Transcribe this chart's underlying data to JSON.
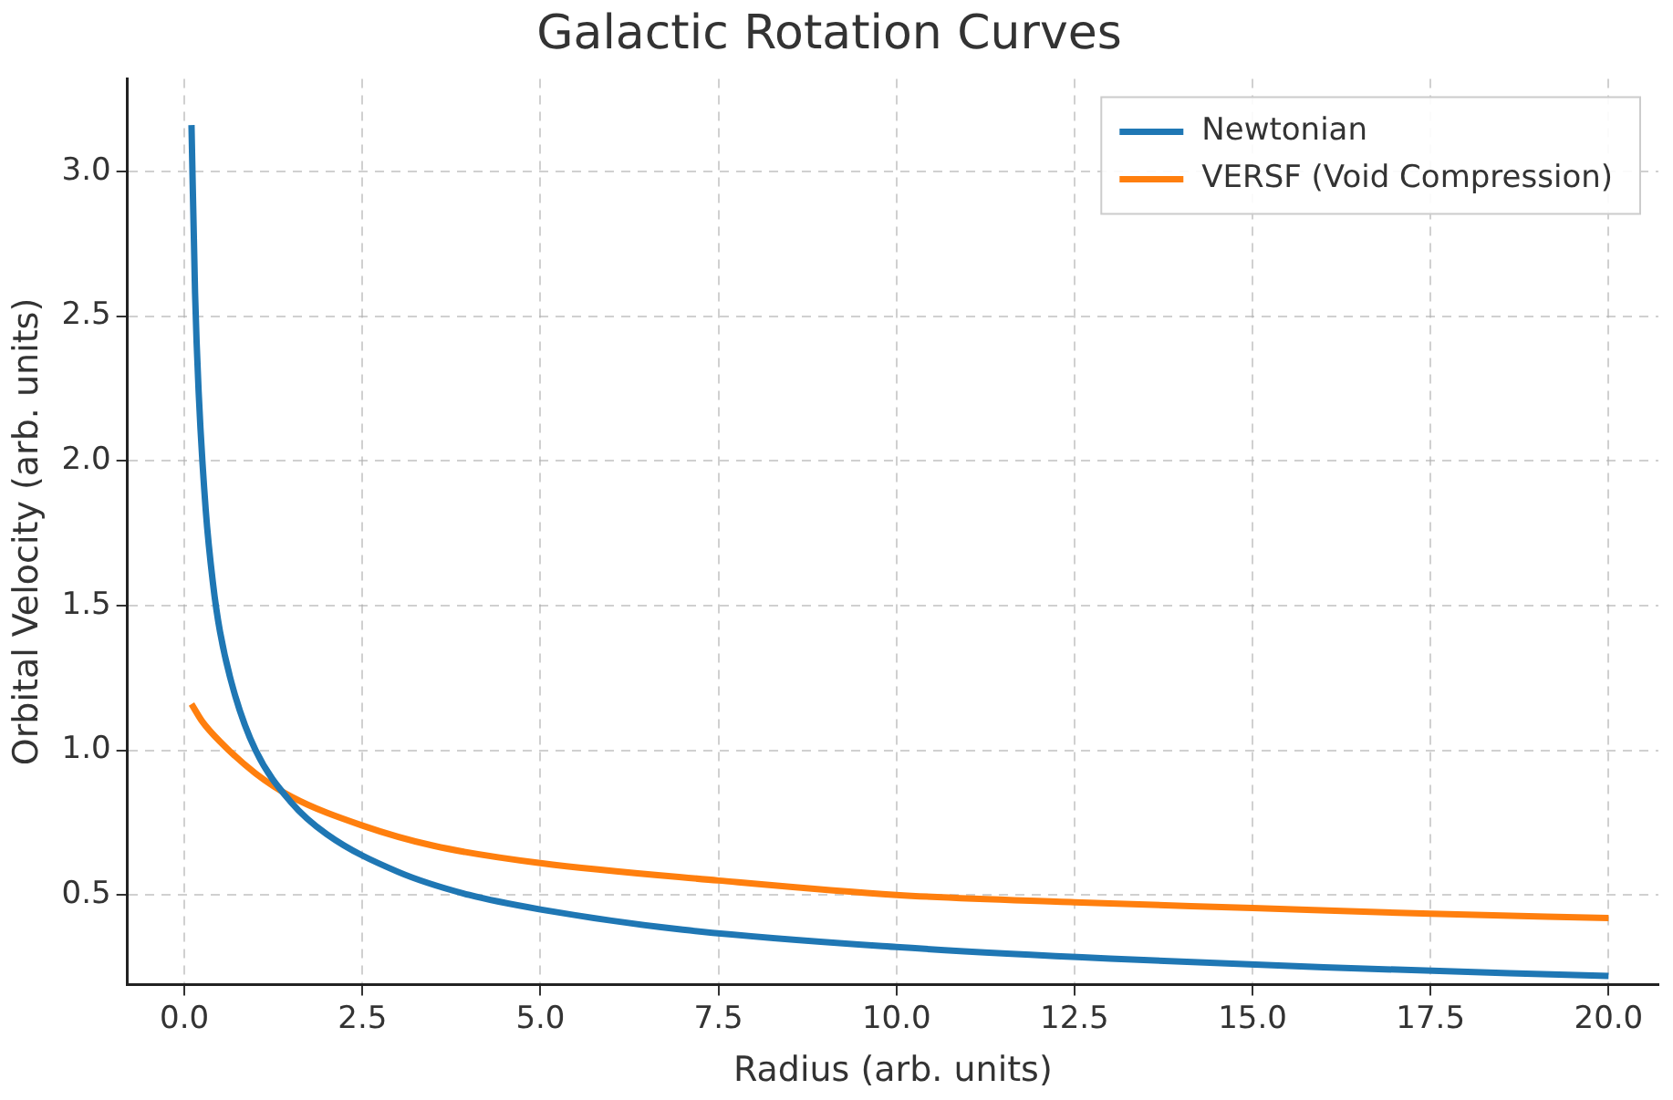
{
  "chart_data": {
    "type": "line",
    "title": "Galactic Rotation Curves",
    "xlabel": "Radius (arb. units)",
    "ylabel": "Orbital Velocity (arb. units)",
    "xlim": [
      -0.8,
      20.7
    ],
    "xticks": [
      {
        "value": 0,
        "label": "0.0"
      },
      2.5,
      {
        "value": 5,
        "label": "5.0"
      },
      7.5,
      {
        "value": 10,
        "label": "10.0"
      },
      12.5,
      {
        "value": 15,
        "label": "15.0"
      },
      17.5,
      {
        "value": 20,
        "label": "20.0"
      }
    ],
    "ylim": [
      0.19,
      3.32
    ],
    "yticks": [
      0.5,
      {
        "value": 1,
        "label": "1.0"
      },
      1.5,
      {
        "value": 2,
        "label": "2.0"
      },
      2.5,
      {
        "value": 3,
        "label": "3.0"
      }
    ],
    "grid": true,
    "legend": "top right",
    "marker": "none",
    "line_style": "solid",
    "series": [
      {
        "name": "Newtonian",
        "color": "#1f77b4",
        "x": [
          0.1,
          0.15,
          0.2,
          0.3,
          0.4,
          0.5,
          0.7,
          1,
          1.5,
          2,
          3,
          4,
          5,
          7,
          10,
          13,
          16,
          20
        ],
        "values": [
          3.16,
          2.58,
          2.24,
          1.83,
          1.58,
          1.41,
          1.2,
          1.0,
          0.82,
          0.71,
          0.58,
          0.5,
          0.45,
          0.38,
          0.32,
          0.28,
          0.25,
          0.22
        ]
      },
      {
        "name": "VERSF (Void Compression)",
        "color": "#ff7f0e",
        "x": [
          0.1,
          0.25,
          0.5,
          1,
          1.5,
          2.5,
          3.5,
          5,
          7.5,
          10,
          12.5,
          15,
          17.5,
          20
        ],
        "values": [
          1.16,
          1.1,
          1.03,
          0.92,
          0.84,
          0.74,
          0.67,
          0.61,
          0.55,
          0.5,
          0.475,
          0.455,
          0.435,
          0.42
        ]
      }
    ]
  }
}
